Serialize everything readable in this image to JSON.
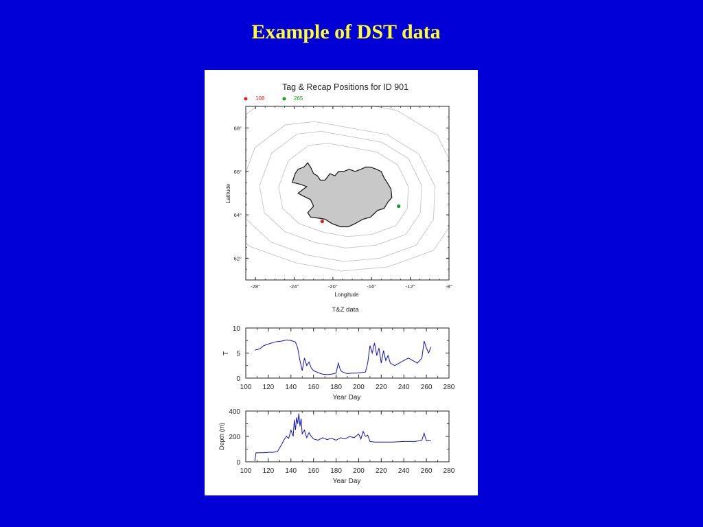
{
  "slide": {
    "title": "Example of DST data"
  },
  "chart_data": [
    {
      "type": "scatter",
      "title": "Tag & Recap Positions for ID 901",
      "xlabel": "Longitude",
      "ylabel": "Latitude",
      "xlim": [
        -29,
        -8
      ],
      "ylim": [
        61,
        69
      ],
      "xticks": [
        "-28°",
        "-24°",
        "-20°",
        "-16°",
        "-12°",
        "-8°"
      ],
      "xtick_values": [
        -28,
        -24,
        -20,
        -16,
        -12,
        -8
      ],
      "yticks": [
        "62°",
        "64°",
        "66°",
        "68°"
      ],
      "ytick_values": [
        62,
        64,
        66,
        68
      ],
      "legend_placement": "top-left",
      "series": [
        {
          "name": "108",
          "color": "#e02020",
          "points": [
            {
              "x": -21.1,
              "y": 63.7
            }
          ]
        },
        {
          "name": "265",
          "color": "#1a9a1a",
          "points": [
            {
              "x": -13.2,
              "y": 64.4
            }
          ]
        }
      ],
      "land_color": "#c8c8c8",
      "contour_color": "#c8c8c8"
    },
    {
      "type": "line",
      "title": "T&Z data",
      "xlabel": "Year Day",
      "ylabel": "T",
      "xlim": [
        100,
        280
      ],
      "ylim": [
        0,
        10
      ],
      "xticks": [
        "100",
        "120",
        "140",
        "160",
        "180",
        "200",
        "220",
        "240",
        "260",
        "280"
      ],
      "xtick_values": [
        100,
        120,
        140,
        160,
        180,
        200,
        220,
        240,
        260,
        280
      ],
      "yticks": [
        "0",
        "5",
        "10"
      ],
      "ytick_values": [
        0,
        5,
        10
      ],
      "color": "#1010c0",
      "x": [
        108,
        112,
        116,
        120,
        124,
        128,
        132,
        136,
        140,
        144,
        146,
        148,
        150,
        152,
        154,
        156,
        158,
        160,
        164,
        168,
        172,
        176,
        180,
        182,
        184,
        186,
        188,
        190,
        194,
        198,
        202,
        206,
        208,
        210,
        212,
        214,
        216,
        218,
        220,
        222,
        224,
        226,
        228,
        232,
        236,
        240,
        244,
        248,
        252,
        256,
        258,
        260,
        262,
        264
      ],
      "y": [
        5.6,
        5.8,
        6.5,
        6.8,
        7.1,
        7.3,
        7.4,
        7.6,
        7.5,
        7.2,
        6.0,
        3.5,
        1.5,
        4.0,
        2.5,
        3.2,
        2.0,
        1.5,
        1.1,
        0.8,
        0.7,
        0.8,
        1.0,
        3.0,
        1.5,
        1.2,
        1.0,
        0.9,
        1.0,
        1.0,
        1.1,
        1.2,
        3.0,
        6.5,
        5.0,
        7.0,
        4.5,
        6.0,
        3.0,
        5.5,
        3.5,
        4.5,
        3.0,
        2.5,
        3.0,
        3.5,
        4.0,
        3.5,
        3.0,
        4.0,
        7.4,
        6.0,
        5.0,
        6.2
      ]
    },
    {
      "type": "line",
      "title": "",
      "xlabel": "Year Day",
      "ylabel": "Depth (m)",
      "xlim": [
        100,
        280
      ],
      "ylim": [
        0,
        400
      ],
      "xticks": [
        "100",
        "120",
        "140",
        "160",
        "180",
        "200",
        "220",
        "240",
        "260",
        "280"
      ],
      "xtick_values": [
        100,
        120,
        140,
        160,
        180,
        200,
        220,
        240,
        260,
        280
      ],
      "yticks": [
        "0",
        "200",
        "400"
      ],
      "ytick_values": [
        0,
        200,
        400
      ],
      "color": "#1010c0",
      "x": [
        108,
        109,
        112,
        116,
        120,
        124,
        128,
        132,
        134,
        136,
        138,
        140,
        142,
        143,
        144,
        145,
        146,
        147,
        148,
        149,
        150,
        152,
        154,
        156,
        158,
        160,
        164,
        168,
        172,
        176,
        180,
        184,
        188,
        192,
        196,
        200,
        202,
        204,
        206,
        208,
        210,
        214,
        220,
        230,
        240,
        250,
        256,
        258,
        260,
        262,
        264
      ],
      "y": [
        5,
        70,
        72,
        72,
        75,
        75,
        80,
        140,
        175,
        200,
        185,
        250,
        200,
        330,
        250,
        350,
        300,
        380,
        280,
        340,
        220,
        250,
        190,
        230,
        200,
        180,
        170,
        190,
        175,
        185,
        170,
        190,
        180,
        200,
        190,
        220,
        180,
        240,
        200,
        210,
        160,
        155,
        155,
        155,
        160,
        160,
        170,
        225,
        165,
        170,
        165
      ]
    }
  ]
}
